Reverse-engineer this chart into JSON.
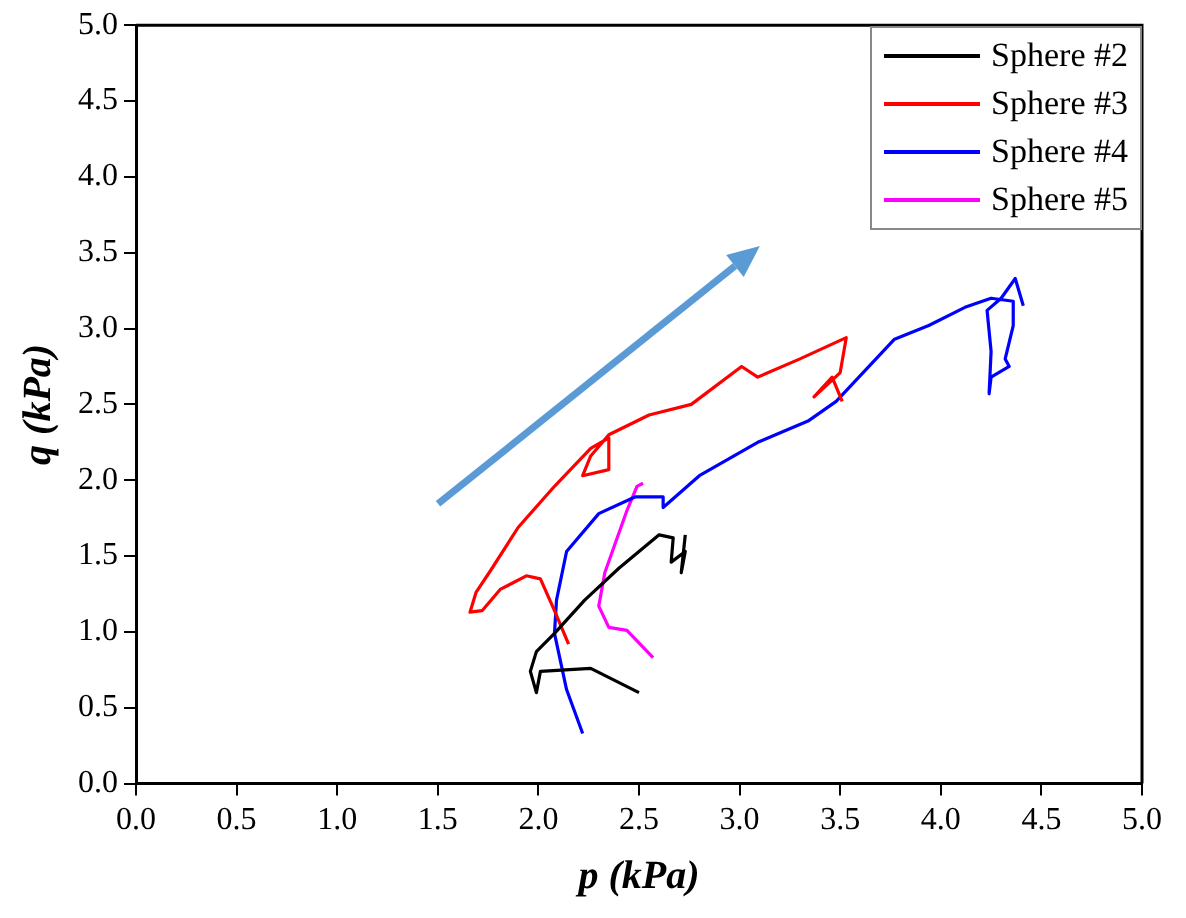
{
  "chart_data": {
    "type": "line",
    "xlabel": "p (kPa)",
    "ylabel": "q (kPa)",
    "xlim": [
      0,
      5
    ],
    "ylim": [
      0,
      5
    ],
    "xticks": [
      {
        "value": 0,
        "label": "0.0"
      },
      {
        "value": 0.5,
        "label": "0.5"
      },
      {
        "value": 1,
        "label": "1.0"
      },
      {
        "value": 1.5,
        "label": "1.5"
      },
      {
        "value": 2,
        "label": "2.0"
      },
      {
        "value": 2.5,
        "label": "2.5"
      },
      {
        "value": 3,
        "label": "3.0"
      },
      {
        "value": 3.5,
        "label": "3.5"
      },
      {
        "value": 4,
        "label": "4.0"
      },
      {
        "value": 4.5,
        "label": "4.5"
      },
      {
        "value": 5,
        "label": "5.0"
      }
    ],
    "yticks": [
      {
        "value": 0,
        "label": "0.0"
      },
      {
        "value": 0.5,
        "label": "0.5"
      },
      {
        "value": 1,
        "label": "1.0"
      },
      {
        "value": 1.5,
        "label": "1.5"
      },
      {
        "value": 2,
        "label": "2.0"
      },
      {
        "value": 2.5,
        "label": "2.5"
      },
      {
        "value": 3,
        "label": "3.0"
      },
      {
        "value": 3.5,
        "label": "3.5"
      },
      {
        "value": 4,
        "label": "4.0"
      },
      {
        "value": 4.5,
        "label": "4.5"
      },
      {
        "value": 5,
        "label": "5.0"
      }
    ],
    "grid": false,
    "legend": "top right",
    "marker": "none",
    "line_style": "solid",
    "series": [
      {
        "name": "Sphere #2",
        "color": "#000000",
        "x": [
          2.5,
          2.26,
          2.01,
          1.99,
          1.96,
          1.99,
          2.08,
          2.23,
          2.4,
          2.6,
          2.67,
          2.66,
          2.73,
          2.71,
          2.73
        ],
        "values": [
          0.6,
          0.76,
          0.74,
          0.6,
          0.74,
          0.87,
          0.99,
          1.21,
          1.42,
          1.64,
          1.62,
          1.46,
          1.53,
          1.39,
          1.64
        ]
      },
      {
        "name": "Sphere #3",
        "color": "#ff0000",
        "x": [
          2.15,
          2.08,
          2.01,
          1.94,
          1.81,
          1.72,
          1.66,
          1.69,
          1.76,
          1.9,
          2.08,
          2.26,
          2.35,
          2.35,
          2.22,
          2.26,
          2.35,
          2.55,
          2.76,
          3.01,
          3.09,
          3.3,
          3.53,
          3.5,
          3.46,
          3.37,
          3.46,
          3.51
        ],
        "values": [
          0.92,
          1.14,
          1.35,
          1.37,
          1.28,
          1.14,
          1.13,
          1.26,
          1.4,
          1.69,
          1.96,
          2.21,
          2.28,
          2.07,
          2.03,
          2.16,
          2.3,
          2.43,
          2.5,
          2.75,
          2.68,
          2.8,
          2.94,
          2.71,
          2.66,
          2.55,
          2.68,
          2.52
        ]
      },
      {
        "name": "Sphere #4",
        "color": "#0000ff",
        "x": [
          2.22,
          2.14,
          2.08,
          2.09,
          2.14,
          2.3,
          2.48,
          2.62,
          2.62,
          2.8,
          3.09,
          3.34,
          3.48,
          3.77,
          3.94,
          4.12,
          4.25,
          4.36,
          4.36,
          4.32,
          4.34,
          4.25,
          4.24,
          4.25,
          4.23,
          4.3,
          4.37,
          4.41
        ],
        "values": [
          0.33,
          0.62,
          0.99,
          1.21,
          1.53,
          1.78,
          1.89,
          1.89,
          1.82,
          2.03,
          2.25,
          2.39,
          2.52,
          2.93,
          3.02,
          3.14,
          3.2,
          3.18,
          3.02,
          2.8,
          2.75,
          2.68,
          2.57,
          2.85,
          3.12,
          3.2,
          3.33,
          3.15
        ]
      },
      {
        "name": "Sphere #5",
        "color": "#ff00ff",
        "x": [
          2.57,
          2.44,
          2.35,
          2.3,
          2.33,
          2.44,
          2.49,
          2.52
        ],
        "values": [
          0.83,
          1.01,
          1.03,
          1.17,
          1.39,
          1.8,
          1.96,
          1.98
        ]
      }
    ]
  }
}
